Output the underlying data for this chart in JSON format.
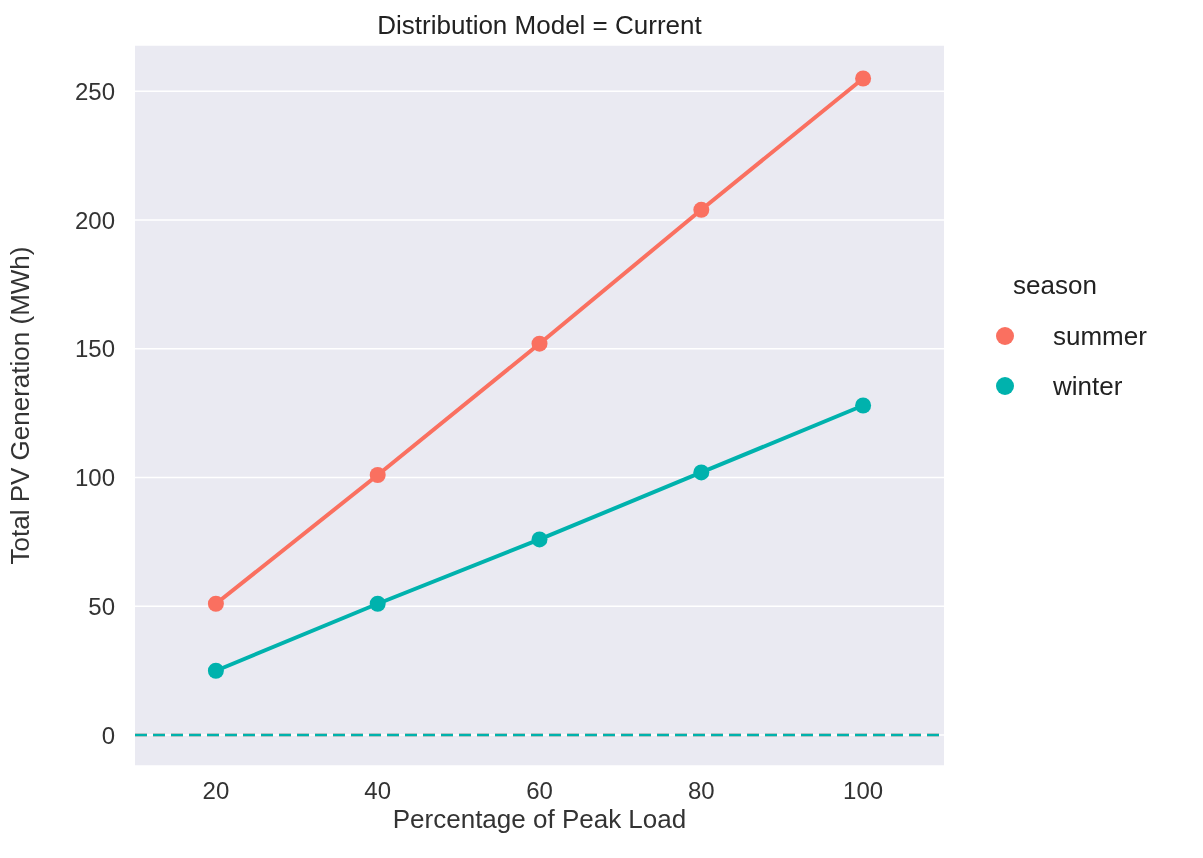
{
  "chart_data": {
    "type": "line",
    "title": "Distribution Model = Current",
    "xlabel": "Percentage of Peak Load",
    "ylabel": "Total PV Generation (MWh)",
    "legend_title": "season",
    "x": [
      20,
      40,
      60,
      80,
      100
    ],
    "series": [
      {
        "name": "summer",
        "color": "#fa7060",
        "values": [
          51,
          101,
          152,
          204,
          255
        ]
      },
      {
        "name": "winter",
        "color": "#00b2ad",
        "values": [
          25,
          51,
          76,
          102,
          128
        ]
      }
    ],
    "xlim": [
      10,
      110
    ],
    "xticks": [
      20,
      40,
      60,
      80,
      100
    ],
    "ylim": [
      -12,
      268
    ],
    "yticks": [
      0,
      50,
      100,
      150,
      200,
      250
    ],
    "ref_lines": [
      {
        "axis": "y",
        "value": 0,
        "color": "#fa7060",
        "line_style": "dashed"
      },
      {
        "axis": "y",
        "value": 0,
        "color": "#00b2ad",
        "line_style": "dashed"
      }
    ],
    "grid": "y",
    "legend": "right",
    "marker": "circle",
    "line_style": "solid"
  }
}
